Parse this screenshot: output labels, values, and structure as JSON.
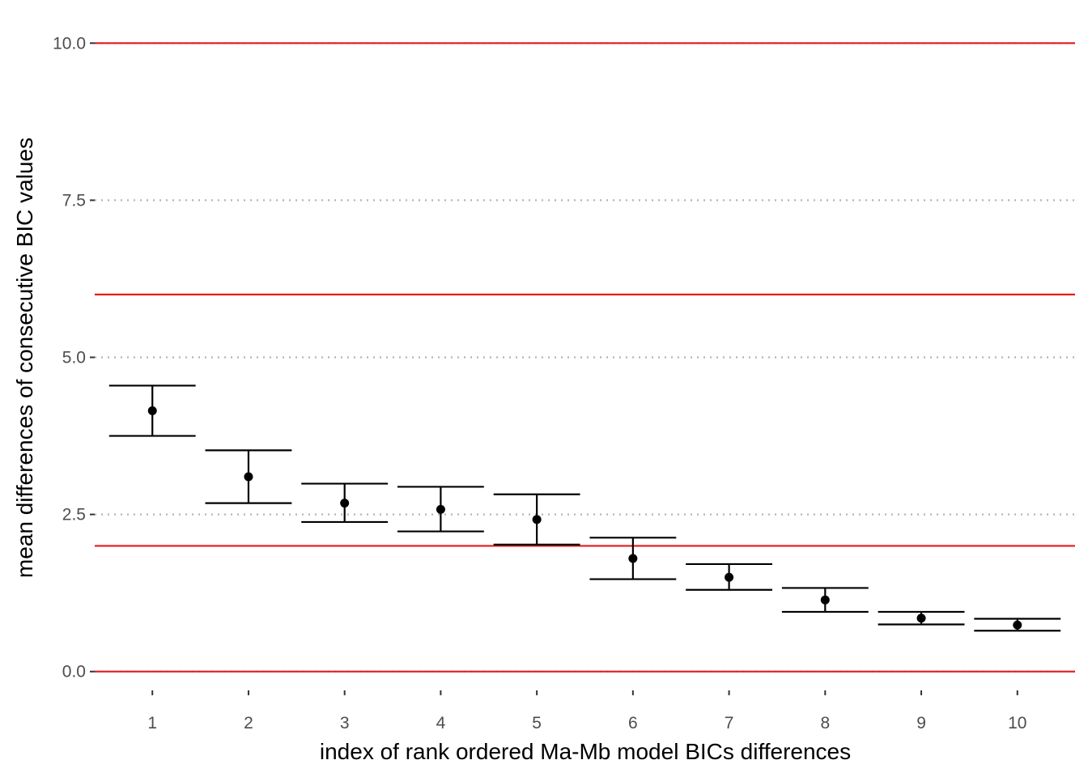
{
  "chart_data": {
    "type": "scatter",
    "xlabel": "index of rank ordered Ma-Mb model BICs differences",
    "ylabel": "mean differences of consecutive BIC values",
    "xlim": [
      0.4,
      10.6
    ],
    "ylim": [
      -0.3,
      10.3
    ],
    "x_ticks": [
      "1",
      "2",
      "3",
      "4",
      "5",
      "6",
      "7",
      "8",
      "9",
      "10"
    ],
    "y_ticks": [
      "0.0",
      "2.5",
      "5.0",
      "7.5",
      "10.0"
    ],
    "y_tick_values": [
      0,
      2.5,
      5,
      7.5,
      10
    ],
    "grid": "horizontal dotted",
    "reference_lines": [
      0,
      2,
      6,
      10
    ],
    "colors": {
      "reference_line": "#e41a1c",
      "point": "#000000",
      "errorbar": "#000000",
      "grid": "#b3b3b3"
    },
    "points": [
      {
        "x": 1,
        "y": 4.15,
        "ymin": 3.75,
        "ymax": 4.55
      },
      {
        "x": 2,
        "y": 3.1,
        "ymin": 2.68,
        "ymax": 3.52
      },
      {
        "x": 3,
        "y": 2.68,
        "ymin": 2.38,
        "ymax": 2.99
      },
      {
        "x": 4,
        "y": 2.58,
        "ymin": 2.23,
        "ymax": 2.94
      },
      {
        "x": 5,
        "y": 2.42,
        "ymin": 2.02,
        "ymax": 2.82
      },
      {
        "x": 6,
        "y": 1.8,
        "ymin": 1.47,
        "ymax": 2.13
      },
      {
        "x": 7,
        "y": 1.5,
        "ymin": 1.3,
        "ymax": 1.71
      },
      {
        "x": 8,
        "y": 1.14,
        "ymin": 0.95,
        "ymax": 1.33
      },
      {
        "x": 9,
        "y": 0.85,
        "ymin": 0.75,
        "ymax": 0.95
      },
      {
        "x": 10,
        "y": 0.74,
        "ymin": 0.65,
        "ymax": 0.84
      }
    ]
  }
}
